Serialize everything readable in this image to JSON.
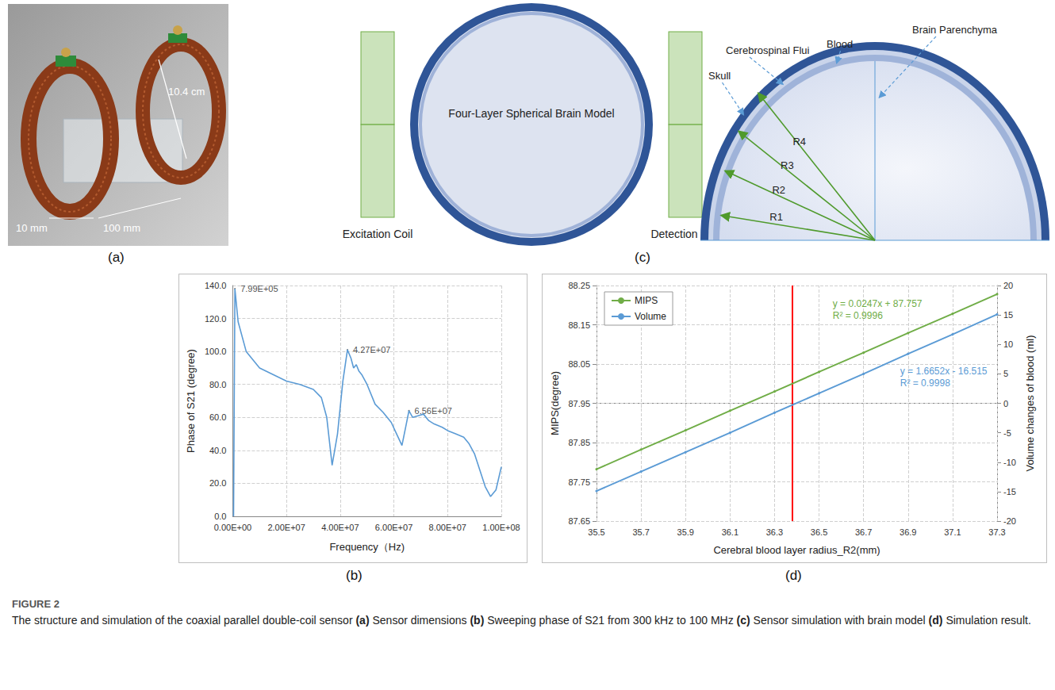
{
  "figure": {
    "label": "FIGURE 2",
    "caption": {
      "title": "The structure and simulation of the coaxial parallel double-coil sensor",
      "items": [
        {
          "tag": "(a)",
          "text": "Sensor dimensions"
        },
        {
          "tag": "(b)",
          "text": "Sweeping phase of S21 from 300 kHz to 100 MHz"
        },
        {
          "tag": "(c)",
          "text": "Sensor simulation with brain model"
        },
        {
          "tag": "(d)",
          "text": "Simulation result."
        }
      ]
    }
  },
  "panel_a": {
    "tag": "(a)",
    "dimensions": [
      "10.4 cm",
      "10 mm",
      "100 mm"
    ]
  },
  "panel_c": {
    "tag": "(c)",
    "model_label": "Four-Layer Spherical Brain Model",
    "coils": [
      "Excitation Coil",
      "Detection Coil"
    ],
    "layers": [
      "Skull",
      "Cerebrospinal Flui",
      "Blood",
      "Brain Parenchyma"
    ],
    "radii": [
      "R1",
      "R2",
      "R3",
      "R4"
    ]
  },
  "chart_data": [
    {
      "tag": "(b)",
      "type": "line",
      "x_label": "Frequency（Hz)",
      "y_label": "Phase of S21 (degree)",
      "x": [
        300000,
        799000,
        2000000,
        5000000,
        10000000,
        15000000,
        20000000,
        25000000,
        30000000,
        33000000,
        35000000,
        37000000,
        39000000,
        41000000,
        42700000,
        44000000,
        45000000,
        46000000,
        47000000,
        48000000,
        50000000,
        53000000,
        56000000,
        59000000,
        61000000,
        63000000,
        64500000,
        65600000,
        67000000,
        69000000,
        71000000,
        73000000,
        75000000,
        78000000,
        80000000,
        83000000,
        86000000,
        88000000,
        90000000,
        92000000,
        94000000,
        96000000,
        98000000,
        100000000
      ],
      "values": [
        0,
        138,
        118,
        100,
        90,
        86,
        82,
        80,
        77,
        72,
        60,
        31,
        50,
        82,
        101,
        96,
        90,
        92,
        88,
        86,
        80,
        68,
        63,
        57,
        50,
        43,
        55,
        64,
        60,
        61,
        62,
        58,
        56,
        54,
        52,
        50,
        48,
        44,
        38,
        28,
        18,
        12,
        16,
        30
      ],
      "color": "#5b9bd5",
      "xlim": [
        0,
        100000000
      ],
      "xticks": [
        {
          "value": 0,
          "label": "0.00E+00"
        },
        {
          "value": 20000000,
          "label": "2.00E+07"
        },
        {
          "value": 40000000,
          "label": "4.00E+07"
        },
        {
          "value": 60000000,
          "label": "6.00E+07"
        },
        {
          "value": 80000000,
          "label": "8.00E+07"
        },
        {
          "value": 100000000,
          "label": "1.00E+08"
        }
      ],
      "ylim": [
        0,
        140
      ],
      "yticks": [
        {
          "value": 0,
          "label": "0.0"
        },
        {
          "value": 20,
          "label": "20.0"
        },
        {
          "value": 40,
          "label": "40.0"
        },
        {
          "value": 60,
          "label": "60.0"
        },
        {
          "value": 80,
          "label": "80.0"
        },
        {
          "value": 100,
          "label": "100.0"
        },
        {
          "value": 120,
          "label": "120.0"
        },
        {
          "value": 140,
          "label": "140.0"
        }
      ],
      "grid": true,
      "annotations": [
        {
          "x": 799000,
          "y": 138,
          "label": "7.99E+05"
        },
        {
          "x": 42700000,
          "y": 101,
          "label": "4.27E+07"
        },
        {
          "x": 65600000,
          "y": 64,
          "label": "6.56E+07"
        }
      ]
    },
    {
      "tag": "(d)",
      "type": "line",
      "x_label": "Cerebral blood layer radius_R2(mm)",
      "y_label": "MIPS(degree)",
      "y2_label": "Volume changes of blood (ml)",
      "x": [
        35.5,
        35.7,
        35.9,
        36.1,
        36.3,
        36.5,
        36.7,
        36.9,
        37.1,
        37.3
      ],
      "series": [
        {
          "name": "MIPS",
          "color": "#70ad47",
          "values": [
            87.782,
            87.832,
            87.881,
            87.931,
            87.98,
            88.03,
            88.079,
            88.129,
            88.178,
            88.228
          ],
          "equation": "y = 0.0247x + 87.757",
          "r2": "R² = 0.9996"
        },
        {
          "name": "Volume",
          "color": "#5b9bd5",
          "axis": "y2",
          "values": [
            -14.9,
            -11.6,
            -8.3,
            -5.0,
            -1.6,
            1.7,
            5.0,
            8.4,
            11.7,
            15.1
          ],
          "equation": "y = 1.6652x - 16.515",
          "r2": "R² = 0.9998"
        }
      ],
      "xlim": [
        35.5,
        37.3
      ],
      "xticks": [
        35.5,
        35.7,
        35.9,
        36.1,
        36.3,
        36.5,
        36.7,
        36.9,
        37.1,
        37.3
      ],
      "ylim": [
        87.65,
        88.25
      ],
      "yticks": [
        87.65,
        87.75,
        87.85,
        87.95,
        88.05,
        88.15,
        88.25
      ],
      "y2lim": [
        -20,
        20
      ],
      "y2ticks": [
        -20,
        -15,
        -10,
        -5,
        0,
        5,
        10,
        15,
        20
      ],
      "grid": true,
      "legend": "upper left",
      "reference_line": {
        "x": 36.38,
        "color": "#ff0000"
      }
    }
  ]
}
